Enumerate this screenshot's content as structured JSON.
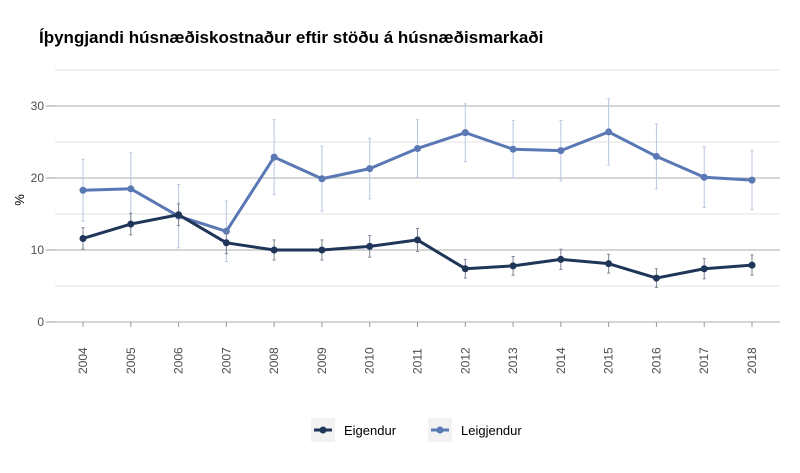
{
  "chart_data": {
    "type": "line",
    "title": "Íþyngjandi húsnæðiskostnaður eftir stöðu á húsnæðismarkaði",
    "xlabel": "",
    "ylabel": "%",
    "x": [
      "2004",
      "2005",
      "2006",
      "2007",
      "2008",
      "2009",
      "2010",
      "2011",
      "2012",
      "2013",
      "2014",
      "2015",
      "2016",
      "2017",
      "2018"
    ],
    "ylim": [
      0,
      35
    ],
    "yticks": [
      0,
      10,
      20,
      30
    ],
    "grid": true,
    "legend_position": "bottom",
    "error_bars": true,
    "series": [
      {
        "name": "Eigendur",
        "color": "#1f3658",
        "values": [
          11.6,
          13.6,
          14.9,
          11.0,
          10.0,
          10.0,
          10.5,
          11.4,
          7.4,
          7.8,
          8.7,
          8.1,
          6.1,
          7.4,
          7.9
        ],
        "error": [
          1.5,
          1.5,
          1.5,
          1.5,
          1.4,
          1.4,
          1.5,
          1.6,
          1.3,
          1.3,
          1.4,
          1.3,
          1.3,
          1.4,
          1.4
        ]
      },
      {
        "name": "Leigjendur",
        "color": "#5a78b4",
        "values": [
          18.3,
          18.5,
          14.7,
          12.6,
          22.9,
          19.9,
          21.3,
          24.1,
          26.3,
          24.0,
          23.8,
          26.4,
          23.0,
          20.1,
          19.7
        ],
        "error": [
          4.3,
          5.0,
          4.4,
          4.2,
          5.2,
          4.5,
          4.2,
          4.0,
          4.0,
          4.0,
          4.2,
          4.6,
          4.5,
          4.2,
          4.1
        ]
      }
    ]
  }
}
